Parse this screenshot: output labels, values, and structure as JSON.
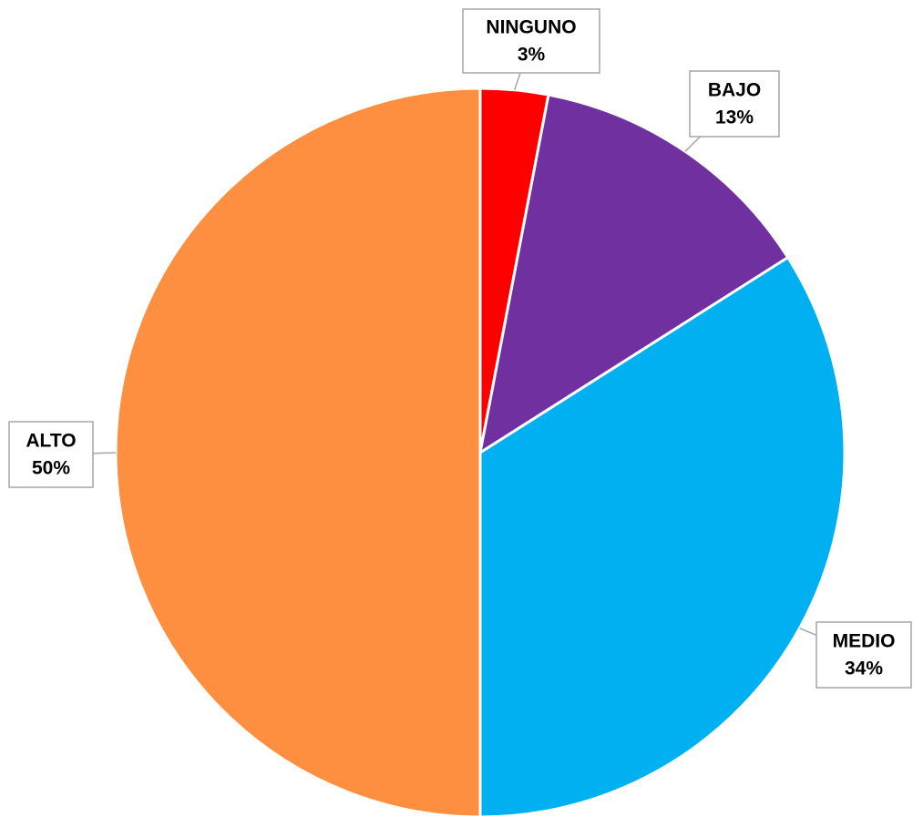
{
  "chart_data": {
    "type": "pie",
    "categories": [
      "NINGUNO",
      "BAJO",
      "MEDIO",
      "ALTO"
    ],
    "values": [
      3,
      13,
      34,
      50
    ],
    "value_labels": [
      "3%",
      "13%",
      "34%",
      "50%"
    ],
    "colors": [
      "#ff0000",
      "#7030a0",
      "#00b0f0",
      "#ff8f40"
    ]
  }
}
